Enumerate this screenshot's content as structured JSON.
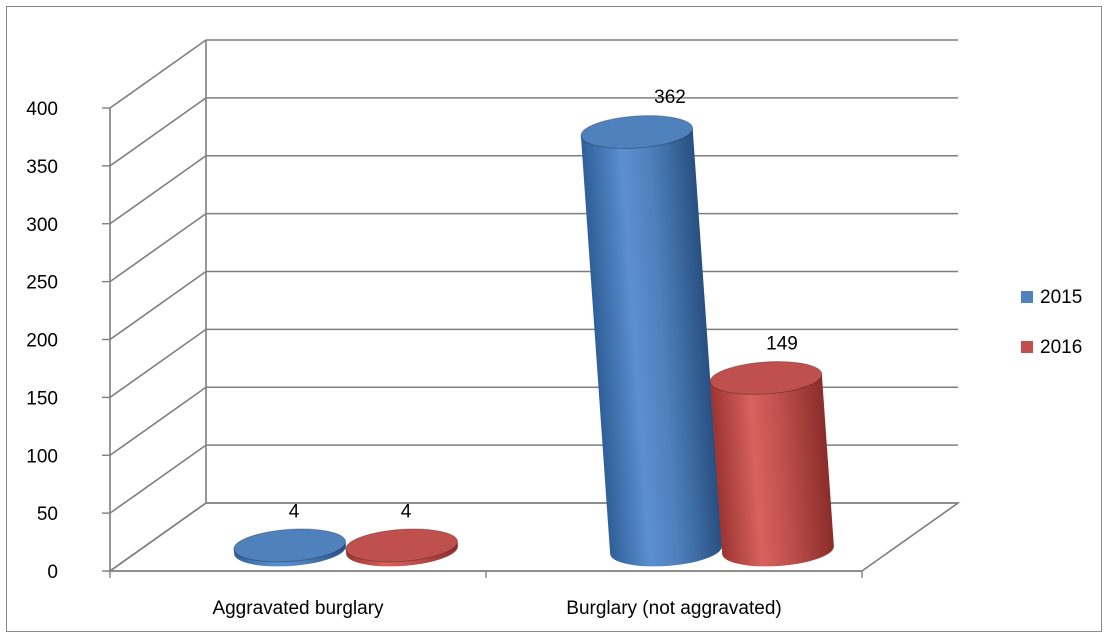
{
  "chart_data": {
    "type": "bar",
    "style": "3d-cylinder",
    "categories": [
      "Aggravated burglary",
      "Burglary (not aggravated)"
    ],
    "series": [
      {
        "name": "2015",
        "values": [
          4,
          362
        ],
        "color": "#4f81bd"
      },
      {
        "name": "2016",
        "values": [
          4,
          149
        ],
        "color": "#c0504d"
      }
    ],
    "ylim": [
      0,
      400
    ],
    "yticks": [
      "0",
      "50",
      "100",
      "150",
      "200",
      "250",
      "300",
      "350",
      "400"
    ],
    "data_labels": [
      [
        "4",
        "362"
      ],
      [
        "4",
        "149"
      ]
    ],
    "grid": true,
    "legend_position": "right"
  }
}
